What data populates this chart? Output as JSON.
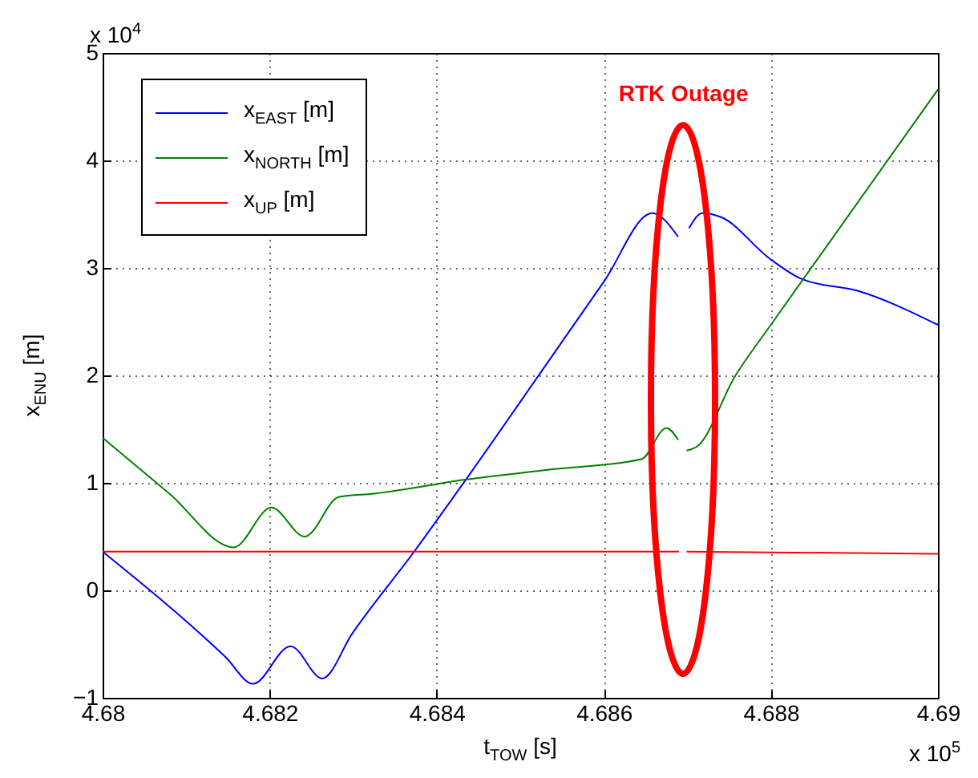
{
  "chart_data": {
    "type": "line",
    "xlabel": "t$_{TOW}$ [s]",
    "ylabel": "x$_{ENU}$ [m]",
    "xlim": [
      4.68,
      4.69
    ],
    "xticks": [
      4.68,
      4.682,
      4.684,
      4.686,
      4.688,
      4.69
    ],
    "ylim": [
      -1,
      5
    ],
    "yticks": [
      -1,
      0,
      1,
      2,
      3,
      4,
      5
    ],
    "grid": true,
    "legend": "top left",
    "annotations": [
      "x 10$^{4}$",
      "x 10$^{5}$",
      "RTK Outage"
    ],
    "series": [
      {
        "name": "x$_{EAST}$ [m]",
        "color": "#0000ff",
        "x": [
          4.68,
          4.68147,
          4.6818,
          4.68225,
          4.68263,
          4.68299,
          4.68373,
          4.68434,
          4.68531,
          4.686,
          4.68658,
          4.68689,
          4.68695,
          4.68702,
          4.68718,
          4.68741,
          4.68798,
          4.68836,
          4.68907,
          4.69
        ],
        "values": [
          0.36,
          -0.62,
          -0.87,
          -0.52,
          -0.82,
          -0.4,
          0.36,
          1.02,
          2.1,
          2.87,
          3.51,
          3.29,
          null,
          3.37,
          3.51,
          3.47,
          3.09,
          2.9,
          2.78,
          2.47
        ]
      },
      {
        "name": "x$_{NORTH}$ [m]",
        "color": "#008000",
        "x": [
          4.68,
          4.6808,
          4.68157,
          4.68202,
          4.68242,
          4.68283,
          4.68325,
          4.68434,
          4.68531,
          4.68645,
          4.68675,
          4.68689,
          4.68694,
          4.68699,
          4.68712,
          4.68757,
          4.688,
          4.69
        ],
        "values": [
          1.42,
          0.9,
          0.4,
          0.77,
          0.5,
          0.87,
          0.9,
          1.03,
          1.12,
          1.22,
          1.51,
          1.4,
          null,
          1.3,
          1.34,
          1.99,
          2.47,
          4.66
        ]
      },
      {
        "name": "x$_{UP}$ [m]",
        "color": "#ff0000",
        "x": [
          4.68,
          4.6869,
          4.68695,
          4.68699,
          4.69
        ],
        "values": [
          0.36,
          0.36,
          null,
          0.36,
          0.34
        ]
      }
    ]
  }
}
